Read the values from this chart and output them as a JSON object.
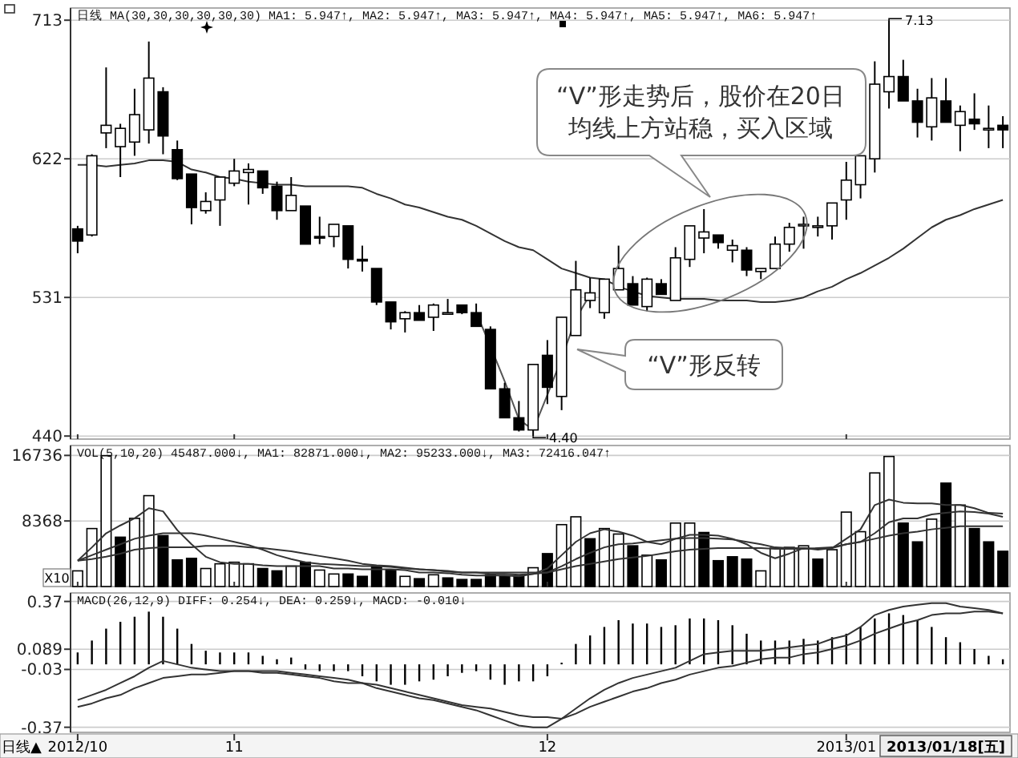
{
  "chart_data": [
    {
      "type": "candlestick",
      "title": "日线 MA(30,30,30,30,30,30) MA1: 5.947↑, MA2: 5.947↑, MA3: 5.947↑, MA4: 5.947↑, MA5: 5.947↑, MA6: 5.947↑",
      "categories": [
        "2012/10",
        null,
        null,
        null,
        null,
        null,
        null,
        null,
        null,
        null,
        null,
        "11",
        null,
        null,
        null,
        null,
        null,
        null,
        null,
        null,
        null,
        null,
        null,
        null,
        null,
        null,
        null,
        null,
        null,
        null,
        null,
        null,
        null,
        "12",
        null,
        null,
        null,
        null,
        null,
        null,
        null,
        null,
        null,
        null,
        null,
        null,
        null,
        null,
        null,
        null,
        null,
        null,
        null,
        null,
        "2013/01",
        null,
        null,
        null,
        null,
        null,
        null,
        null,
        null,
        null,
        null,
        null
      ],
      "ohlc": [
        [
          576,
          578,
          560,
          568
        ],
        [
          572,
          625,
          571,
          624
        ],
        [
          639,
          682,
          629,
          644
        ],
        [
          630,
          645,
          610,
          642
        ],
        [
          633,
          668,
          624,
          651
        ],
        [
          641,
          699,
          632,
          675
        ],
        [
          666,
          669,
          625,
          637
        ],
        [
          628,
          634,
          608,
          609
        ],
        [
          612,
          612,
          579,
          590
        ],
        [
          588,
          600,
          586,
          594
        ],
        [
          595,
          610,
          578,
          610
        ],
        [
          606,
          622,
          604,
          614
        ],
        [
          613,
          619,
          592,
          615
        ],
        [
          614,
          614,
          599,
          603
        ],
        [
          604,
          607,
          582,
          588
        ],
        [
          588,
          610,
          588,
          598
        ],
        [
          591,
          591,
          566,
          566
        ],
        [
          571,
          584,
          566,
          570
        ],
        [
          571,
          579,
          564,
          579
        ],
        [
          578,
          578,
          550,
          556
        ],
        [
          556,
          565,
          548,
          555
        ],
        [
          550,
          550,
          526,
          528
        ],
        [
          528,
          528,
          510,
          515
        ],
        [
          517,
          522,
          508,
          521
        ],
        [
          521,
          526,
          516,
          516
        ],
        [
          518,
          527,
          509,
          526
        ],
        [
          521,
          530,
          520,
          521
        ],
        [
          526,
          526,
          520,
          521
        ],
        [
          521,
          527,
          512,
          512
        ],
        [
          510,
          512,
          471,
          471
        ],
        [
          471,
          475,
          452,
          452
        ],
        [
          452,
          463,
          443,
          444
        ],
        [
          444,
          487,
          440,
          487
        ],
        [
          493,
          503,
          461,
          472
        ],
        [
          466,
          518,
          457,
          518
        ],
        [
          506,
          555,
          506,
          536
        ],
        [
          529,
          544,
          524,
          534
        ],
        [
          521,
          543,
          517,
          543
        ],
        [
          536,
          565,
          536,
          550
        ],
        [
          540,
          545,
          526,
          526
        ],
        [
          525,
          544,
          522,
          543
        ],
        [
          540,
          543,
          533,
          533
        ],
        [
          529,
          564,
          529,
          557
        ],
        [
          556,
          578,
          551,
          578
        ],
        [
          570,
          589,
          560,
          574
        ],
        [
          572,
          572,
          563,
          567
        ],
        [
          562,
          569,
          554,
          565
        ],
        [
          562,
          564,
          545,
          549
        ],
        [
          548,
          550,
          543,
          550
        ],
        [
          550,
          571,
          550,
          566
        ],
        [
          566,
          580,
          561,
          577
        ],
        [
          578,
          584,
          563,
          579
        ],
        [
          578,
          584,
          571,
          578
        ],
        [
          578,
          593,
          569,
          593
        ],
        [
          595,
          620,
          582,
          608
        ],
        [
          605,
          624,
          596,
          624
        ],
        [
          622,
          686,
          613,
          671
        ],
        [
          666,
          713,
          655,
          676
        ],
        [
          676,
          687,
          660,
          660
        ],
        [
          660,
          668,
          636,
          646
        ],
        [
          643,
          675,
          634,
          662
        ],
        [
          660,
          675,
          646,
          646
        ],
        [
          644,
          657,
          627,
          653
        ],
        [
          648,
          665,
          641,
          645
        ],
        [
          642,
          657,
          629,
          642
        ],
        [
          644,
          650,
          629,
          641
        ]
      ],
      "series": [
        {
          "type": "line",
          "color": "#555555",
          "values": [
            null,
            null,
            null,
            null,
            null,
            null,
            null,
            null,
            null,
            null,
            null,
            null,
            null,
            null,
            null,
            null,
            null,
            null,
            null,
            null,
            null,
            null,
            null,
            null,
            null,
            null,
            null,
            null,
            521,
            499,
            476,
            451,
            444,
            467,
            491,
            517,
            533,
            null,
            null,
            null,
            null,
            null,
            null,
            null,
            null,
            null,
            null,
            null,
            null,
            null,
            null,
            null,
            null,
            null,
            null,
            null,
            null,
            null,
            null,
            null,
            null,
            null,
            null,
            null,
            null,
            null
          ]
        },
        {
          "type": "line",
          "color": "#333333",
          "values": [
            618,
            618,
            617,
            618,
            619,
            621,
            621,
            620,
            615,
            613,
            610,
            609,
            607,
            606,
            605,
            605,
            604,
            604,
            604,
            604,
            603,
            599,
            596,
            592,
            590,
            587,
            584,
            582,
            578,
            573,
            568,
            564,
            562,
            556,
            550,
            547,
            544,
            543,
            538,
            535,
            532,
            531,
            530,
            530,
            530,
            529,
            529,
            529,
            528,
            528,
            529,
            531,
            535,
            538,
            543,
            547,
            552,
            557,
            563,
            570,
            577,
            582,
            585,
            589,
            592,
            595
          ]
        }
      ],
      "ylim": [
        438,
        721
      ],
      "yticks": [
        440,
        531,
        622,
        713
      ],
      "grid": "y",
      "tick_labels": "y",
      "annotations": [
        "7.13",
        "4.40",
        "“V”形走势后，股价在20日均线上方站稳，买入区域",
        "“V”形反转"
      ]
    },
    {
      "type": "bar",
      "title": "VOL(5,10,20) 45487.000↓, MA1: 82871.000↓, MA2: 95233.000↓, MA3: 72416.047↑",
      "ylabel": "X10",
      "categories": [
        "2012/10",
        null,
        null,
        null,
        null,
        null,
        null,
        null,
        null,
        null,
        null,
        "11",
        null,
        null,
        null,
        null,
        null,
        null,
        null,
        null,
        null,
        null,
        null,
        null,
        null,
        null,
        null,
        null,
        null,
        null,
        null,
        null,
        null,
        "12",
        null,
        null,
        null,
        null,
        null,
        null,
        null,
        null,
        null,
        null,
        null,
        null,
        null,
        null,
        null,
        null,
        null,
        null,
        null,
        null,
        "2013/01",
        null,
        null,
        null,
        null,
        null,
        null,
        null,
        null,
        null,
        null,
        null
      ],
      "series": [
        {
          "type": "bar",
          "values": [
            2000,
            7400,
            16700,
            6300,
            8700,
            11600,
            6500,
            3400,
            3600,
            2300,
            2900,
            3100,
            2900,
            2300,
            2000,
            2600,
            3100,
            2100,
            1600,
            1600,
            1300,
            2600,
            2100,
            1300,
            1000,
            1500,
            1100,
            900,
            900,
            1500,
            1300,
            1300,
            2400,
            4200,
            7900,
            8900,
            6100,
            7400,
            6700,
            5200,
            4000,
            3400,
            8100,
            8100,
            6900,
            3300,
            3800,
            3500,
            2000,
            4900,
            5000,
            5200,
            3500,
            4700,
            9500,
            7000,
            14500,
            16600,
            8100,
            5700,
            8600,
            13200,
            10400,
            7400,
            5700,
            4500
          ],
          "colors": [
            "#ffffff",
            "#ffffff",
            "#ffffff",
            "#000000",
            "#ffffff",
            "#ffffff",
            "#000000",
            "#000000",
            "#000000",
            "#ffffff",
            "#ffffff",
            "#ffffff",
            "#ffffff",
            "#000000",
            "#000000",
            "#ffffff",
            "#000000",
            "#ffffff",
            "#ffffff",
            "#000000",
            "#000000",
            "#000000",
            "#000000",
            "#ffffff",
            "#000000",
            "#ffffff",
            "#000000",
            "#000000",
            "#000000",
            "#000000",
            "#000000",
            "#000000",
            "#ffffff",
            "#000000",
            "#ffffff",
            "#ffffff",
            "#000000",
            "#ffffff",
            "#ffffff",
            "#000000",
            "#ffffff",
            "#000000",
            "#ffffff",
            "#ffffff",
            "#000000",
            "#000000",
            "#000000",
            "#000000",
            "#ffffff",
            "#ffffff",
            "#ffffff",
            "#ffffff",
            "#000000",
            "#ffffff",
            "#ffffff",
            "#ffffff",
            "#ffffff",
            "#ffffff",
            "#000000",
            "#000000",
            "#ffffff",
            "#000000",
            "#ffffff",
            "#000000",
            "#000000",
            "#000000"
          ]
        },
        {
          "type": "line",
          "color": "#333333",
          "values": [
            3300,
            5000,
            6800,
            7800,
            8700,
            10000,
            9600,
            7200,
            5400,
            3800,
            3100,
            2900,
            2900,
            2700,
            2600,
            2600,
            2600,
            2600,
            2300,
            2300,
            2200,
            2200,
            2200,
            2100,
            1800,
            1800,
            1700,
            1500,
            1400,
            1400,
            1400,
            1300,
            1600,
            2300,
            4000,
            5700,
            6800,
            7300,
            7000,
            6500,
            5700,
            5400,
            6100,
            6600,
            6600,
            6500,
            6100,
            5400,
            4300,
            3600,
            4200,
            4900,
            4700,
            4900,
            6100,
            7300,
            10400,
            11100,
            10700,
            10600,
            10600,
            10400,
            10400,
            10000,
            9400,
            9300
          ]
        },
        {
          "type": "line",
          "color": "#333333",
          "values": [
            3300,
            4000,
            4700,
            5400,
            6100,
            6500,
            6800,
            6800,
            6800,
            6500,
            6100,
            5700,
            5300,
            4700,
            4000,
            3500,
            3100,
            2900,
            2800,
            2700,
            2600,
            2600,
            2500,
            2300,
            2200,
            2100,
            2000,
            1800,
            1800,
            1600,
            1600,
            1500,
            1600,
            1800,
            2600,
            3500,
            4300,
            5000,
            5400,
            5500,
            5700,
            5900,
            6100,
            6200,
            6200,
            6100,
            6000,
            5700,
            5400,
            5000,
            4900,
            4900,
            4800,
            4900,
            5400,
            5700,
            6800,
            8200,
            8700,
            8700,
            9200,
            9400,
            9600,
            9500,
            9300,
            8900
          ]
        },
        {
          "type": "line",
          "color": "#333333",
          "values": [
            3300,
            3500,
            3800,
            4200,
            4700,
            4900,
            5000,
            5000,
            5000,
            5200,
            5200,
            5200,
            5000,
            4900,
            4700,
            4500,
            4200,
            3900,
            3600,
            3300,
            2900,
            2700,
            2600,
            2400,
            2200,
            2100,
            1900,
            1800,
            1800,
            1800,
            1800,
            1800,
            1800,
            1800,
            2200,
            2600,
            2900,
            3200,
            3500,
            3700,
            3900,
            4200,
            4500,
            4700,
            4800,
            4900,
            4900,
            4900,
            4900,
            4800,
            4800,
            4800,
            4900,
            5000,
            5400,
            5700,
            6100,
            6500,
            6800,
            7000,
            7300,
            7500,
            7700,
            7700,
            7700,
            7700
          ]
        }
      ],
      "ylim": [
        0,
        18000
      ],
      "yticks": [
        8368,
        16736
      ],
      "grid": "y",
      "tick_labels": "y"
    },
    {
      "type": "bar",
      "title": "MACD(26,12,9) DIFF: 0.254↓, DEA: 0.259↓, MACD: -0.010↓",
      "categories": [
        "2012/10",
        null,
        null,
        null,
        null,
        null,
        null,
        null,
        null,
        null,
        null,
        "11",
        null,
        null,
        null,
        null,
        null,
        null,
        null,
        null,
        null,
        null,
        null,
        null,
        null,
        null,
        null,
        null,
        null,
        null,
        null,
        null,
        null,
        "12",
        null,
        null,
        null,
        null,
        null,
        null,
        null,
        null,
        null,
        null,
        null,
        null,
        null,
        null,
        null,
        null,
        null,
        null,
        null,
        null,
        "2013/01",
        null,
        null,
        null,
        null,
        null,
        null,
        null,
        null,
        null,
        null,
        null
      ],
      "series": [
        {
          "type": "bar",
          "color": "#000000",
          "values": [
            0.07,
            0.14,
            0.21,
            0.25,
            0.28,
            0.31,
            0.28,
            0.21,
            0.12,
            0.08,
            0.07,
            0.07,
            0.07,
            0.05,
            0.03,
            0.04,
            -0.03,
            -0.04,
            -0.04,
            -0.04,
            -0.07,
            -0.1,
            -0.12,
            -0.12,
            -0.1,
            -0.09,
            -0.07,
            -0.05,
            -0.04,
            -0.09,
            -0.12,
            -0.1,
            -0.1,
            -0.07,
            0.01,
            0.12,
            0.17,
            0.22,
            0.26,
            0.24,
            0.24,
            0.22,
            0.23,
            0.27,
            0.27,
            0.26,
            0.23,
            0.18,
            0.14,
            0.14,
            0.14,
            0.15,
            0.14,
            0.16,
            0.18,
            0.22,
            0.27,
            0.3,
            0.29,
            0.26,
            0.22,
            0.16,
            0.13,
            0.09,
            0.05,
            0.03
          ]
        },
        {
          "type": "line",
          "color": "#333333",
          "values": [
            -0.21,
            -0.18,
            -0.15,
            -0.11,
            -0.07,
            -0.02,
            0.02,
            0.0,
            -0.02,
            -0.03,
            -0.04,
            -0.04,
            -0.04,
            -0.04,
            -0.04,
            -0.05,
            -0.06,
            -0.07,
            -0.08,
            -0.09,
            -0.11,
            -0.14,
            -0.16,
            -0.18,
            -0.2,
            -0.21,
            -0.23,
            -0.25,
            -0.27,
            -0.3,
            -0.33,
            -0.36,
            -0.37,
            -0.37,
            -0.32,
            -0.26,
            -0.2,
            -0.15,
            -0.11,
            -0.08,
            -0.06,
            -0.04,
            -0.02,
            0.02,
            0.06,
            0.07,
            0.08,
            0.08,
            0.08,
            0.09,
            0.1,
            0.11,
            0.12,
            0.15,
            0.17,
            0.22,
            0.29,
            0.32,
            0.34,
            0.35,
            0.36,
            0.36,
            0.34,
            0.33,
            0.32,
            0.3
          ]
        },
        {
          "type": "line",
          "color": "#333333",
          "values": [
            -0.25,
            -0.23,
            -0.2,
            -0.18,
            -0.14,
            -0.11,
            -0.08,
            -0.07,
            -0.06,
            -0.06,
            -0.05,
            -0.04,
            -0.04,
            -0.05,
            -0.05,
            -0.06,
            -0.07,
            -0.08,
            -0.1,
            -0.11,
            -0.11,
            -0.12,
            -0.14,
            -0.16,
            -0.18,
            -0.2,
            -0.22,
            -0.24,
            -0.25,
            -0.26,
            -0.28,
            -0.3,
            -0.31,
            -0.31,
            -0.32,
            -0.29,
            -0.25,
            -0.22,
            -0.19,
            -0.16,
            -0.14,
            -0.11,
            -0.09,
            -0.06,
            -0.04,
            -0.02,
            -0.01,
            0.01,
            0.03,
            0.04,
            0.04,
            0.06,
            0.07,
            0.09,
            0.11,
            0.14,
            0.18,
            0.21,
            0.24,
            0.26,
            0.29,
            0.3,
            0.3,
            0.31,
            0.31,
            0.3
          ]
        }
      ],
      "ylim": [
        -0.4,
        0.42
      ],
      "yticks": [
        0.37,
        0.089,
        -0.03,
        -0.37
      ],
      "grid": "y",
      "annotations": [
        "日线▲",
        "2013/01/18[五]"
      ]
    }
  ]
}
